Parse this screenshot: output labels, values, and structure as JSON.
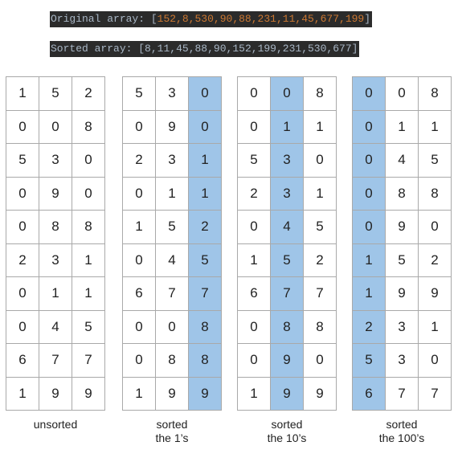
{
  "original_line": {
    "label": "Original array: ",
    "values": [
      "152",
      "8",
      "530",
      "90",
      "88",
      "231",
      "11",
      "45",
      "677",
      "199"
    ]
  },
  "sorted_line": {
    "label": "Sorted array: ",
    "values": [
      "8",
      "11",
      "45",
      "88",
      "90",
      "152",
      "199",
      "231",
      "530",
      "677"
    ]
  },
  "colors": {
    "highlight": "#9fc5e8",
    "code_background": "#2b2b2b",
    "code_text": "#a9b7c6",
    "code_number": "#cc7832"
  },
  "tables": [
    {
      "caption": [
        "unsorted"
      ],
      "highlight_column": null,
      "rows": [
        [
          "1",
          "5",
          "2"
        ],
        [
          "0",
          "0",
          "8"
        ],
        [
          "5",
          "3",
          "0"
        ],
        [
          "0",
          "9",
          "0"
        ],
        [
          "0",
          "8",
          "8"
        ],
        [
          "2",
          "3",
          "1"
        ],
        [
          "0",
          "1",
          "1"
        ],
        [
          "0",
          "4",
          "5"
        ],
        [
          "6",
          "7",
          "7"
        ],
        [
          "1",
          "9",
          "9"
        ]
      ]
    },
    {
      "caption": [
        "sorted",
        "the 1’s"
      ],
      "highlight_column": 2,
      "rows": [
        [
          "5",
          "3",
          "0"
        ],
        [
          "0",
          "9",
          "0"
        ],
        [
          "2",
          "3",
          "1"
        ],
        [
          "0",
          "1",
          "1"
        ],
        [
          "1",
          "5",
          "2"
        ],
        [
          "0",
          "4",
          "5"
        ],
        [
          "6",
          "7",
          "7"
        ],
        [
          "0",
          "0",
          "8"
        ],
        [
          "0",
          "8",
          "8"
        ],
        [
          "1",
          "9",
          "9"
        ]
      ]
    },
    {
      "caption": [
        "sorted",
        "the 10’s"
      ],
      "highlight_column": 1,
      "rows": [
        [
          "0",
          "0",
          "8"
        ],
        [
          "0",
          "1",
          "1"
        ],
        [
          "5",
          "3",
          "0"
        ],
        [
          "2",
          "3",
          "1"
        ],
        [
          "0",
          "4",
          "5"
        ],
        [
          "1",
          "5",
          "2"
        ],
        [
          "6",
          "7",
          "7"
        ],
        [
          "0",
          "8",
          "8"
        ],
        [
          "0",
          "9",
          "0"
        ],
        [
          "1",
          "9",
          "9"
        ]
      ]
    },
    {
      "caption": [
        "sorted",
        "the 100’s"
      ],
      "highlight_column": 0,
      "rows": [
        [
          "0",
          "0",
          "8"
        ],
        [
          "0",
          "1",
          "1"
        ],
        [
          "0",
          "4",
          "5"
        ],
        [
          "0",
          "8",
          "8"
        ],
        [
          "0",
          "9",
          "0"
        ],
        [
          "1",
          "5",
          "2"
        ],
        [
          "1",
          "9",
          "9"
        ],
        [
          "2",
          "3",
          "1"
        ],
        [
          "5",
          "3",
          "0"
        ],
        [
          "6",
          "7",
          "7"
        ]
      ]
    }
  ]
}
